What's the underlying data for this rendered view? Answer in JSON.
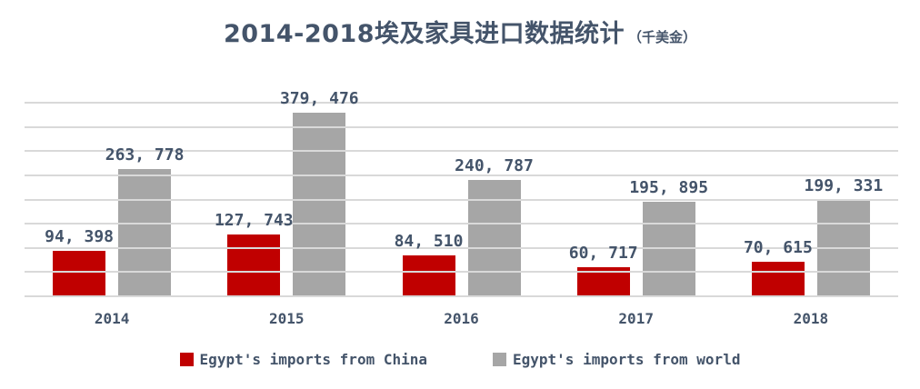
{
  "title": {
    "main": "2014-2018埃及家具进口数据统计",
    "unit": "（千美金）"
  },
  "legend": [
    {
      "key": "china",
      "label": "Egypt's imports from China",
      "color": "#c00000"
    },
    {
      "key": "world",
      "label": "Egypt's imports from world",
      "color": "#a6a6a6"
    }
  ],
  "colors": {
    "text": "#44546a",
    "gridline": "#d9d9d9",
    "background": "#ffffff",
    "china_red": "#c00000",
    "world_gray": "#a6a6a6"
  },
  "chart_data": {
    "type": "bar",
    "title": "2014-2018埃及家具进口数据统计（千美金）",
    "xlabel": "",
    "ylabel": "",
    "categories": [
      "2014",
      "2015",
      "2016",
      "2017",
      "2018"
    ],
    "series": [
      {
        "key": "china",
        "name": "Egypt's imports from China",
        "color": "#c00000",
        "values": [
          94398,
          127743,
          84510,
          60717,
          70615
        ],
        "display_labels": [
          "94, 398",
          "127, 743",
          "84, 510",
          "60, 717",
          "70, 615"
        ]
      },
      {
        "key": "world",
        "name": "Egypt's imports from world",
        "color": "#a6a6a6",
        "values": [
          263778,
          379476,
          240787,
          195895,
          199331
        ],
        "display_labels": [
          "263, 778",
          "379, 476",
          "240, 787",
          "195, 895",
          "199, 331"
        ]
      }
    ],
    "ylim": [
      0,
      400000
    ],
    "gridline_step": 50000,
    "grid": true,
    "y_tick_labels_visible": false,
    "data_labels_visible": true,
    "legend_position": "bottom"
  }
}
